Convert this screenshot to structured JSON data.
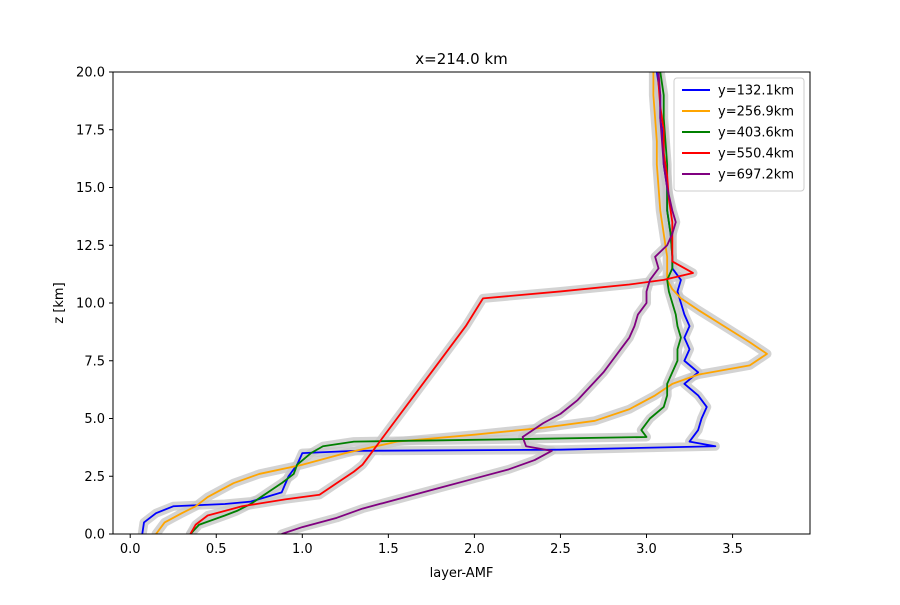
{
  "chart_data": {
    "type": "line",
    "title": "x=214.0 km",
    "xlabel": "layer-AMF",
    "ylabel": "z [km]",
    "xlim": [
      -0.1,
      3.95
    ],
    "ylim": [
      0,
      20
    ],
    "xticks": [
      0.0,
      0.5,
      1.0,
      1.5,
      2.0,
      2.5,
      3.0,
      3.5
    ],
    "xtick_labels": [
      "0.0",
      "0.5",
      "1.0",
      "1.5",
      "2.0",
      "2.5",
      "3.0",
      "3.5"
    ],
    "yticks": [
      0.0,
      2.5,
      5.0,
      7.5,
      10.0,
      12.5,
      15.0,
      17.5,
      20.0
    ],
    "ytick_labels": [
      "0.0",
      "2.5",
      "5.0",
      "7.5",
      "10.0",
      "12.5",
      "15.0",
      "17.5",
      "20.0"
    ],
    "grid": false,
    "legend_position": "upper right",
    "uncertainty_band_color": "#c8c8c8",
    "series": [
      {
        "name": "y=132.1km",
        "color": "#0000ff",
        "points": [
          [
            0.07,
            0.0
          ],
          [
            0.08,
            0.5
          ],
          [
            0.15,
            0.9
          ],
          [
            0.25,
            1.2
          ],
          [
            0.55,
            1.3
          ],
          [
            0.7,
            1.4
          ],
          [
            0.88,
            1.8
          ],
          [
            0.92,
            2.5
          ],
          [
            0.97,
            3.0
          ],
          [
            1.0,
            3.5
          ],
          [
            1.3,
            3.6
          ],
          [
            2.5,
            3.65
          ],
          [
            3.4,
            3.8
          ],
          [
            3.25,
            4.0
          ],
          [
            3.3,
            4.5
          ],
          [
            3.32,
            5.0
          ],
          [
            3.35,
            5.5
          ],
          [
            3.3,
            6.0
          ],
          [
            3.22,
            6.5
          ],
          [
            3.3,
            7.0
          ],
          [
            3.22,
            7.5
          ],
          [
            3.25,
            8.0
          ],
          [
            3.22,
            8.5
          ],
          [
            3.25,
            9.0
          ],
          [
            3.22,
            9.5
          ],
          [
            3.2,
            10.0
          ],
          [
            3.18,
            10.5
          ],
          [
            3.2,
            11.0
          ],
          [
            3.15,
            11.5
          ],
          [
            3.15,
            12.0
          ],
          [
            3.14,
            13.0
          ],
          [
            3.12,
            14.0
          ],
          [
            3.12,
            15.0
          ],
          [
            3.1,
            16.0
          ],
          [
            3.1,
            17.0
          ],
          [
            3.08,
            18.0
          ],
          [
            3.08,
            19.0
          ],
          [
            3.06,
            20.0
          ]
        ]
      },
      {
        "name": "y=256.9km",
        "color": "#ffa500",
        "points": [
          [
            0.15,
            0.0
          ],
          [
            0.2,
            0.5
          ],
          [
            0.3,
            0.9
          ],
          [
            0.38,
            1.2
          ],
          [
            0.45,
            1.6
          ],
          [
            0.6,
            2.2
          ],
          [
            0.75,
            2.6
          ],
          [
            1.0,
            3.0
          ],
          [
            1.25,
            3.5
          ],
          [
            1.55,
            4.0
          ],
          [
            2.0,
            4.3
          ],
          [
            2.4,
            4.6
          ],
          [
            2.7,
            4.9
          ],
          [
            2.9,
            5.4
          ],
          [
            3.05,
            6.0
          ],
          [
            3.15,
            6.5
          ],
          [
            3.3,
            6.9
          ],
          [
            3.6,
            7.3
          ],
          [
            3.7,
            7.8
          ],
          [
            3.6,
            8.3
          ],
          [
            3.45,
            9.0
          ],
          [
            3.3,
            9.7
          ],
          [
            3.2,
            10.2
          ],
          [
            3.15,
            10.6
          ],
          [
            3.12,
            11.0
          ],
          [
            3.12,
            12.0
          ],
          [
            3.1,
            13.0
          ],
          [
            3.08,
            14.0
          ],
          [
            3.07,
            15.0
          ],
          [
            3.06,
            16.0
          ],
          [
            3.06,
            17.0
          ],
          [
            3.05,
            18.0
          ],
          [
            3.04,
            19.0
          ],
          [
            3.04,
            20.0
          ]
        ]
      },
      {
        "name": "y=403.6km",
        "color": "#008000",
        "points": [
          [
            0.35,
            0.0
          ],
          [
            0.4,
            0.4
          ],
          [
            0.55,
            0.8
          ],
          [
            0.62,
            1.0
          ],
          [
            0.7,
            1.3
          ],
          [
            0.8,
            1.8
          ],
          [
            0.88,
            2.2
          ],
          [
            0.95,
            2.6
          ],
          [
            0.97,
            3.0
          ],
          [
            1.05,
            3.5
          ],
          [
            1.12,
            3.8
          ],
          [
            1.3,
            4.0
          ],
          [
            2.2,
            4.1
          ],
          [
            3.0,
            4.2
          ],
          [
            2.97,
            4.5
          ],
          [
            3.02,
            5.0
          ],
          [
            3.1,
            5.5
          ],
          [
            3.12,
            6.0
          ],
          [
            3.12,
            6.5
          ],
          [
            3.15,
            7.0
          ],
          [
            3.18,
            7.5
          ],
          [
            3.18,
            8.0
          ],
          [
            3.2,
            8.5
          ],
          [
            3.18,
            9.0
          ],
          [
            3.17,
            9.5
          ],
          [
            3.15,
            10.0
          ],
          [
            3.13,
            10.5
          ],
          [
            3.12,
            11.0
          ],
          [
            3.15,
            11.5
          ],
          [
            3.15,
            12.0
          ],
          [
            3.14,
            13.0
          ],
          [
            3.12,
            14.0
          ],
          [
            3.12,
            15.0
          ],
          [
            3.12,
            16.0
          ],
          [
            3.11,
            17.0
          ],
          [
            3.1,
            18.0
          ],
          [
            3.1,
            19.0
          ],
          [
            3.08,
            20.0
          ]
        ]
      },
      {
        "name": "y=550.4km",
        "color": "#ff0000",
        "points": [
          [
            0.35,
            0.0
          ],
          [
            0.38,
            0.4
          ],
          [
            0.45,
            0.8
          ],
          [
            0.65,
            1.2
          ],
          [
            0.9,
            1.5
          ],
          [
            1.1,
            1.7
          ],
          [
            1.2,
            2.2
          ],
          [
            1.3,
            2.7
          ],
          [
            1.35,
            3.0
          ],
          [
            1.4,
            3.5
          ],
          [
            1.45,
            4.0
          ],
          [
            1.55,
            5.0
          ],
          [
            1.65,
            6.0
          ],
          [
            1.75,
            7.0
          ],
          [
            1.85,
            8.0
          ],
          [
            1.95,
            9.0
          ],
          [
            2.05,
            10.2
          ],
          [
            2.5,
            10.5
          ],
          [
            2.9,
            10.8
          ],
          [
            3.1,
            11.0
          ],
          [
            3.27,
            11.3
          ],
          [
            3.15,
            11.8
          ],
          [
            3.15,
            12.5
          ],
          [
            3.15,
            13.5
          ],
          [
            3.13,
            14.5
          ],
          [
            3.12,
            15.5
          ],
          [
            3.1,
            16.5
          ],
          [
            3.1,
            17.5
          ],
          [
            3.08,
            18.5
          ],
          [
            3.07,
            19.5
          ],
          [
            3.07,
            20.0
          ]
        ]
      },
      {
        "name": "y=697.2km",
        "color": "#800080",
        "points": [
          [
            0.88,
            0.0
          ],
          [
            1.0,
            0.3
          ],
          [
            1.2,
            0.7
          ],
          [
            1.35,
            1.1
          ],
          [
            1.55,
            1.5
          ],
          [
            1.8,
            2.0
          ],
          [
            2.0,
            2.4
          ],
          [
            2.2,
            2.8
          ],
          [
            2.35,
            3.2
          ],
          [
            2.45,
            3.6
          ],
          [
            2.3,
            3.8
          ],
          [
            2.28,
            4.2
          ],
          [
            2.4,
            4.8
          ],
          [
            2.5,
            5.2
          ],
          [
            2.6,
            5.8
          ],
          [
            2.65,
            6.2
          ],
          [
            2.75,
            7.0
          ],
          [
            2.8,
            7.5
          ],
          [
            2.85,
            8.0
          ],
          [
            2.9,
            8.5
          ],
          [
            2.93,
            9.0
          ],
          [
            2.95,
            9.5
          ],
          [
            3.0,
            10.0
          ],
          [
            3.0,
            10.5
          ],
          [
            3.02,
            11.0
          ],
          [
            3.07,
            11.5
          ],
          [
            3.05,
            12.0
          ],
          [
            3.12,
            12.5
          ],
          [
            3.15,
            13.0
          ],
          [
            3.17,
            13.5
          ],
          [
            3.15,
            14.0
          ],
          [
            3.12,
            15.0
          ],
          [
            3.1,
            16.0
          ],
          [
            3.09,
            17.0
          ],
          [
            3.08,
            18.0
          ],
          [
            3.08,
            19.0
          ],
          [
            3.07,
            20.0
          ]
        ]
      }
    ]
  }
}
